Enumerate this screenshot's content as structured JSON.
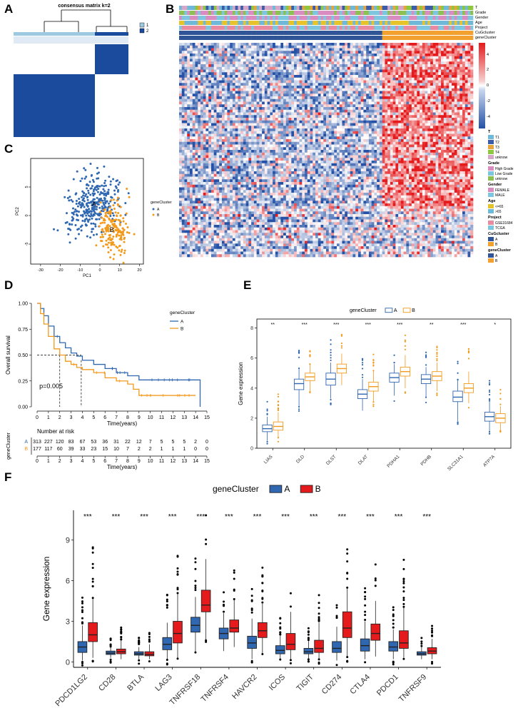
{
  "panels": {
    "a": "A",
    "b": "B",
    "c": "C",
    "d": "D",
    "e": "E",
    "f": "F"
  },
  "panel_a": {
    "title": "consensus matrix k=2",
    "legend": [
      "1",
      "2"
    ],
    "colors": {
      "c1": "#9ecae1",
      "c2": "#1a4b9c"
    }
  },
  "panel_b": {
    "annotation_rows": [
      "T",
      "Grade",
      "Gender",
      "Age",
      "Project",
      "CuGcluster",
      "geneCluster"
    ],
    "scale_ticks": [
      "4",
      "2",
      "0",
      "-2",
      "-4"
    ],
    "legend_groups": [
      {
        "title": "T",
        "items": [
          {
            "label": "T1",
            "color": "#6fb8d8"
          },
          {
            "label": "T2",
            "color": "#3b5ca8"
          },
          {
            "label": "T3",
            "color": "#e8a43c"
          },
          {
            "label": "T4",
            "color": "#8dc63f"
          },
          {
            "label": "unknow",
            "color": "#d6a6c8"
          }
        ]
      },
      {
        "title": "Grade",
        "items": [
          {
            "label": "High Grade",
            "color": "#d98cc0"
          },
          {
            "label": "Low Grade",
            "color": "#7ec6df"
          },
          {
            "label": "unknow",
            "color": "#8cc152"
          }
        ]
      },
      {
        "title": "Gender",
        "items": [
          {
            "label": "FEMALE",
            "color": "#d98cc0"
          },
          {
            "label": "MALE",
            "color": "#7ec6df"
          }
        ]
      },
      {
        "title": "Age",
        "items": [
          {
            "label": "<=65",
            "color": "#e6c32a"
          },
          {
            "label": ">65",
            "color": "#6fb8d8"
          }
        ]
      },
      {
        "title": "Project",
        "items": [
          {
            "label": "GSE31684",
            "color": "#e88aa0"
          },
          {
            "label": "TCGA",
            "color": "#7ec6df"
          }
        ]
      },
      {
        "title": "CuGcluster",
        "items": [
          {
            "label": "A",
            "color": "#2f5597"
          },
          {
            "label": "B",
            "color": "#f2a02e"
          }
        ]
      },
      {
        "title": "geneCluster",
        "items": [
          {
            "label": "A",
            "color": "#2f5597"
          },
          {
            "label": "B",
            "color": "#f2a02e"
          }
        ]
      }
    ]
  },
  "chart_data": [
    {
      "id": "C",
      "type": "scatter",
      "title": "",
      "xlabel": "PC1",
      "ylabel": "PC2",
      "xlim": [
        -35,
        22
      ],
      "ylim": [
        -8.5,
        10
      ],
      "xticks": [
        -30,
        -20,
        -10,
        0,
        10,
        20
      ],
      "yticks": [
        -5,
        0,
        5
      ],
      "legend_title": "geneCluster",
      "legend": [
        "A",
        "B"
      ],
      "series_colors": [
        "#2f67b1",
        "#f29a1d"
      ],
      "centroids": [
        {
          "label": "A",
          "x": -3,
          "y": 2
        },
        {
          "label": "B",
          "x": 6,
          "y": -2.5
        }
      ],
      "n_points": {
        "A": 313,
        "B": 177
      }
    },
    {
      "id": "D",
      "type": "line",
      "title": "",
      "xlabel": "Time(years)",
      "ylabel": "Overall survival",
      "xlim": [
        0,
        15
      ],
      "ylim": [
        0,
        1
      ],
      "xticks": [
        0,
        1,
        2,
        3,
        4,
        5,
        6,
        7,
        8,
        9,
        10,
        11,
        12,
        13,
        14,
        15
      ],
      "yticks": [
        "0.00",
        "0.25",
        "0.50",
        "0.75",
        "1.00"
      ],
      "legend_title": "geneCluster",
      "legend": [
        "A",
        "B"
      ],
      "series_colors": [
        "#2f67b1",
        "#f29a1d"
      ],
      "pvalue": "p=0.005",
      "series": [
        {
          "name": "A",
          "x": [
            0,
            0.3,
            0.6,
            1,
            1.5,
            2,
            2.5,
            3,
            3.5,
            4,
            5,
            6,
            7,
            8,
            9,
            10,
            11,
            12,
            13,
            14.2,
            14.4
          ],
          "y": [
            1,
            0.95,
            0.88,
            0.78,
            0.68,
            0.62,
            0.57,
            0.52,
            0.49,
            0.45,
            0.41,
            0.37,
            0.33,
            0.3,
            0.26,
            0.26,
            0.26,
            0.26,
            0.26,
            0.26,
            0
          ]
        },
        {
          "name": "B",
          "x": [
            0,
            0.3,
            0.6,
            1,
            1.5,
            2,
            2.5,
            3,
            3.5,
            4,
            5,
            6,
            7,
            8,
            8.5,
            9,
            10,
            11,
            12,
            13,
            14
          ],
          "y": [
            1,
            0.9,
            0.8,
            0.68,
            0.56,
            0.5,
            0.44,
            0.41,
            0.38,
            0.36,
            0.33,
            0.28,
            0.25,
            0.22,
            0.17,
            0.11,
            0.11,
            0.11,
            0.11,
            0.11,
            0.11
          ]
        }
      ],
      "risk_title": "Number at risk",
      "risk_ylabel": "geneCluster",
      "risk_xlabel": "Time(years)",
      "risk": [
        {
          "name": "A",
          "values": [
            "313",
            "227",
            "120",
            "83",
            "67",
            "53",
            "36",
            "31",
            "22",
            "12",
            "7",
            "5",
            "5",
            "5",
            "2",
            "0"
          ]
        },
        {
          "name": "B",
          "values": [
            "177",
            "117",
            "60",
            "39",
            "33",
            "23",
            "15",
            "10",
            "7",
            "2",
            "2",
            "1",
            "1",
            "1",
            "0",
            "0"
          ]
        }
      ]
    },
    {
      "id": "E",
      "type": "bar",
      "subtype": "boxplot",
      "title": "",
      "xlabel": "",
      "ylabel": "Gene expression",
      "ylim": [
        0,
        8.6
      ],
      "yticks": [
        0,
        2,
        4,
        6,
        8
      ],
      "legend_title": "geneCluster",
      "legend": [
        "A",
        "B"
      ],
      "series_colors": [
        "#2f67b1",
        "#f29a1d"
      ],
      "categories": [
        "LIAS",
        "DLD",
        "DLST",
        "DLAT",
        "PDHA1",
        "PDHB",
        "SLC31A1",
        "ATP7A"
      ],
      "significance": [
        "**",
        "***",
        "***",
        "***",
        "***",
        "**",
        "***",
        "*"
      ],
      "series": [
        {
          "name": "A",
          "q1": [
            1.1,
            3.9,
            4.2,
            3.3,
            4.4,
            4.3,
            3.1,
            1.8
          ],
          "median": [
            1.3,
            4.3,
            4.6,
            3.6,
            4.7,
            4.6,
            3.4,
            2.1
          ],
          "q3": [
            1.55,
            4.6,
            5.0,
            3.9,
            5.0,
            4.9,
            3.8,
            2.4
          ],
          "lo": [
            0.5,
            2.8,
            3.3,
            2.5,
            3.5,
            3.4,
            1.8,
            1.1
          ],
          "hi": [
            2.1,
            5.3,
            5.7,
            4.6,
            5.6,
            5.4,
            4.5,
            3.1
          ]
        },
        {
          "name": "B",
          "q1": [
            1.2,
            4.5,
            5.0,
            3.8,
            4.8,
            4.5,
            3.7,
            1.7
          ],
          "median": [
            1.45,
            4.75,
            5.3,
            4.1,
            5.1,
            4.8,
            4.0,
            2.0
          ],
          "q3": [
            1.75,
            5.0,
            5.6,
            4.4,
            5.4,
            5.1,
            4.3,
            2.3
          ],
          "lo": [
            0.7,
            3.8,
            4.2,
            3.1,
            4.0,
            3.8,
            3.0,
            1.2
          ],
          "hi": [
            2.4,
            5.6,
            6.3,
            5.1,
            6.2,
            5.7,
            5.1,
            2.8
          ]
        }
      ]
    },
    {
      "id": "F",
      "type": "bar",
      "subtype": "boxplot",
      "title": "",
      "xlabel": "",
      "ylabel": "Gene expression",
      "ylim": [
        -0.4,
        11.2
      ],
      "yticks": [
        0,
        3,
        6,
        9
      ],
      "legend_title": "geneCluster",
      "legend": [
        "A",
        "B"
      ],
      "series_colors": [
        "#2f67b1",
        "#e41a1c"
      ],
      "categories": [
        "PDCD1LG2",
        "CD28",
        "BTLA",
        "LAG3",
        "TNFRSF18",
        "TNFRSF4",
        "HAVCR2",
        "ICOS",
        "TIGIT",
        "CD274",
        "CTLA4",
        "PDCD1",
        "TNFRSF9"
      ],
      "significance": [
        "***",
        "***",
        "***",
        "***",
        "***",
        "***",
        "***",
        "***",
        "***",
        "***",
        "***",
        "***",
        "***"
      ],
      "series": [
        {
          "name": "A",
          "q1": [
            0.7,
            0.55,
            0.5,
            0.9,
            2.2,
            1.7,
            1.0,
            0.6,
            0.6,
            0.7,
            0.8,
            0.8,
            0.5
          ],
          "median": [
            1.1,
            0.65,
            0.6,
            1.3,
            2.7,
            2.1,
            1.4,
            0.85,
            0.75,
            1.0,
            1.2,
            1.1,
            0.6
          ],
          "q3": [
            1.5,
            0.8,
            0.75,
            1.8,
            3.3,
            2.5,
            1.9,
            1.2,
            1.0,
            1.5,
            1.7,
            1.5,
            0.75
          ],
          "lo": [
            0.1,
            0.3,
            0.2,
            0.2,
            0.7,
            0.8,
            0.2,
            0.2,
            0.2,
            0.1,
            0.2,
            0.2,
            0.2
          ],
          "hi": [
            2.7,
            1.1,
            1.1,
            2.9,
            4.8,
            3.6,
            3.2,
            2.0,
            1.6,
            2.6,
            3.0,
            2.4,
            1.1
          ]
        },
        {
          "name": "B",
          "q1": [
            1.5,
            0.6,
            0.45,
            1.4,
            3.7,
            2.2,
            1.8,
            0.9,
            0.7,
            1.8,
            1.6,
            1.0,
            0.6
          ],
          "median": [
            2.0,
            0.75,
            0.55,
            2.1,
            4.2,
            2.5,
            2.3,
            1.3,
            1.0,
            2.5,
            2.1,
            1.4,
            0.8
          ],
          "q3": [
            2.9,
            0.95,
            0.75,
            3.0,
            5.3,
            3.1,
            2.9,
            2.1,
            1.6,
            3.7,
            2.8,
            2.3,
            1.05
          ],
          "lo": [
            0.3,
            0.2,
            0.2,
            0.3,
            1.6,
            1.1,
            0.6,
            0.2,
            0.2,
            0.4,
            0.4,
            0.3,
            0.2
          ],
          "hi": [
            4.7,
            1.6,
            1.3,
            5.0,
            7.6,
            4.6,
            4.3,
            3.7,
            2.9,
            5.4,
            4.5,
            4.0,
            1.7
          ]
        }
      ]
    }
  ]
}
